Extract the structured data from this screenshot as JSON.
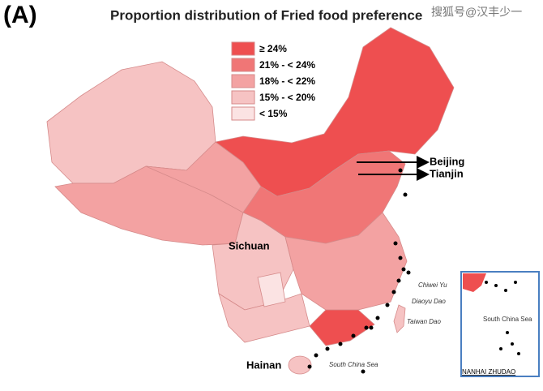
{
  "panel_label": "(A)",
  "title": "Proportion distribution of Fried food preference",
  "watermark": "搜狐号@汉丰少一",
  "legend": {
    "items": [
      {
        "label": "≥ 24%",
        "color": "#ee4f50"
      },
      {
        "label": "21% - < 24%",
        "color": "#f07676"
      },
      {
        "label": "18% - < 22%",
        "color": "#f3a2a2"
      },
      {
        "label": "15% - < 20%",
        "color": "#f6c3c3"
      },
      {
        "label": "< 15%",
        "color": "#fbe3e3"
      }
    ]
  },
  "labels": {
    "beijing": "Beijing",
    "tianjin": "Tianjin",
    "sichuan": "Sichuan",
    "hainan": "Hainan",
    "chiwei": "Chiwei Yu",
    "diaoyu": "Diaoyu Dao",
    "taiwan": "Taiwan Dao",
    "sea": "South China Sea"
  },
  "inset": {
    "sea_label": "South China Sea",
    "islands_label": "NANHAI ZHUDAO"
  }
}
